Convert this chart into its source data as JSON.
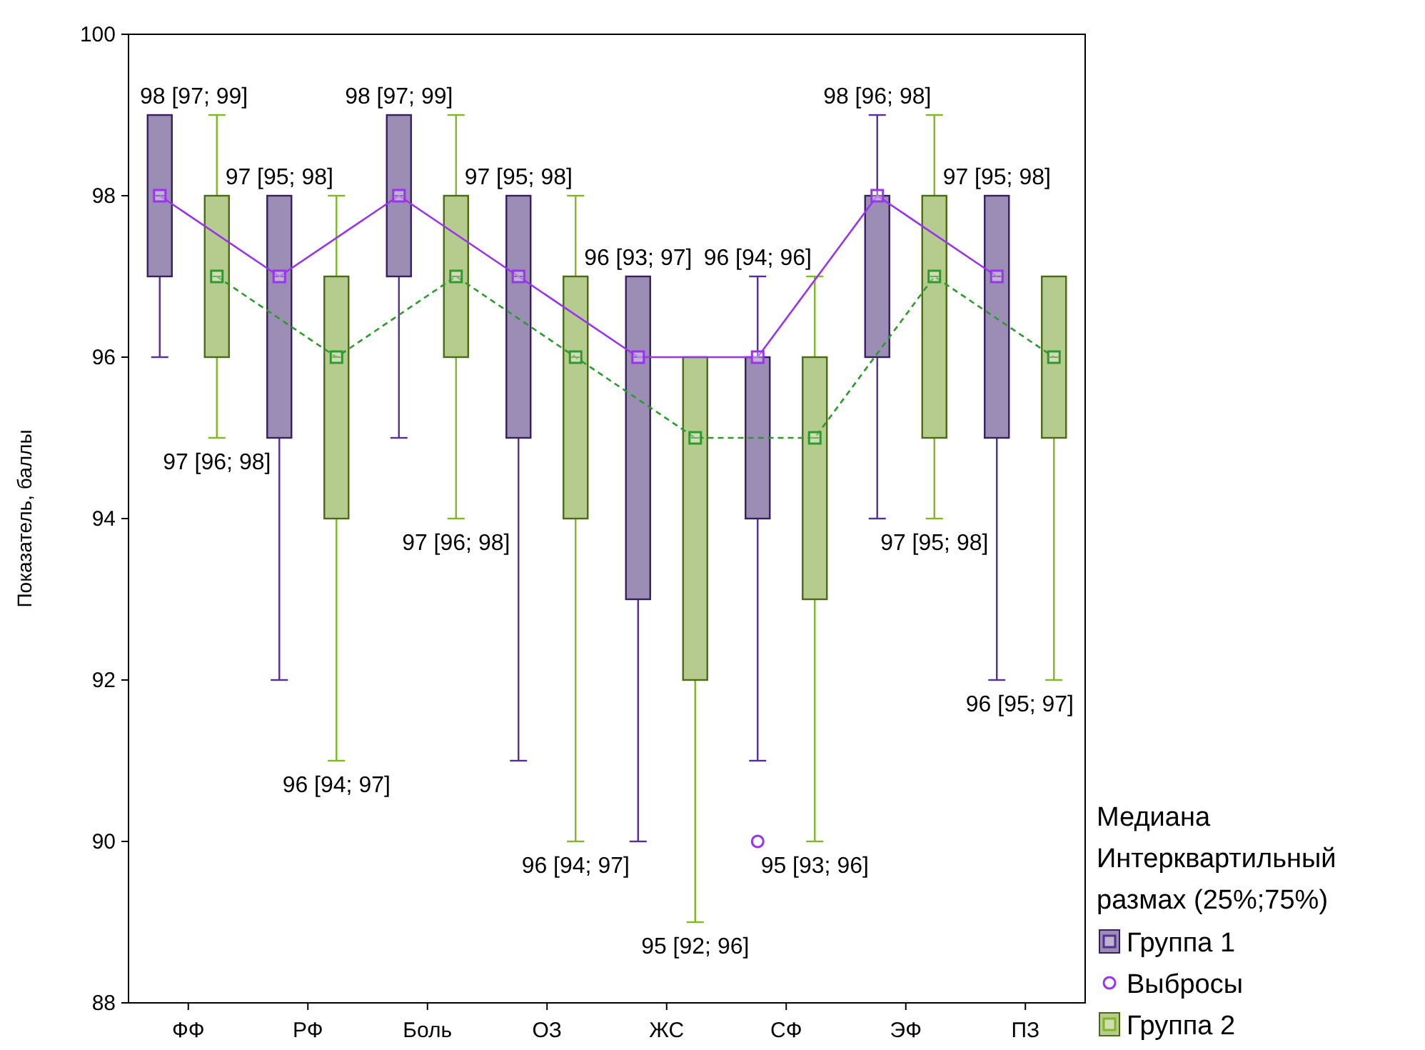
{
  "chart_data": {
    "type": "box",
    "ylabel": "Показатель, баллы",
    "categories": [
      "ФФ",
      "РФ",
      "Боль",
      "ОЗ",
      "ЖС",
      "СФ",
      "ЭФ",
      "ПЗ"
    ],
    "ylim": [
      88,
      100
    ],
    "yticks": [
      88,
      90,
      92,
      94,
      96,
      98,
      100
    ],
    "grid": false,
    "legend": "right",
    "legend_title": "Медиана Интерквартильный размах (25%;75%)",
    "marker": "square",
    "series": [
      {
        "name": "Группа 1",
        "color": "#9c8db5",
        "boxes": [
          {
            "low": 96,
            "q1": 97,
            "median": 98,
            "q3": 99,
            "high": 99
          },
          {
            "low": 92,
            "q1": 95,
            "median": 97,
            "q3": 98,
            "high": 98
          },
          {
            "low": 95,
            "q1": 97,
            "median": 98,
            "q3": 99,
            "high": 99
          },
          {
            "low": 91,
            "q1": 95,
            "median": 97,
            "q3": 98,
            "high": 98
          },
          {
            "low": 90,
            "q1": 93,
            "median": 96,
            "q3": 97,
            "high": 97
          },
          {
            "low": 91,
            "q1": 94,
            "median": 96,
            "q3": 96,
            "high": 97
          },
          {
            "low": 94,
            "q1": 96,
            "median": 98,
            "q3": 98,
            "high": 99
          },
          {
            "low": 92,
            "q1": 95,
            "median": 97,
            "q3": 98,
            "high": 98
          }
        ],
        "value_labels": [
          "98 [97; 99]",
          "97 [95; 98]",
          "98 [97; 99]",
          "97 [95; 98]",
          "96 [93; 97]",
          "96 [94; 96]",
          "98 [96; 98]",
          "97 [95; 98]"
        ]
      },
      {
        "name": "Выбросы",
        "type": "scatter",
        "color": "#9933ee",
        "marker": "circle",
        "x": [
          "СФ"
        ],
        "values": [
          90
        ]
      },
      {
        "type": "line",
        "color": "#9933ee",
        "line_style": "solid",
        "values": [
          98,
          97,
          98,
          97,
          96,
          96,
          98,
          97
        ]
      },
      {
        "type": "line",
        "color": "#2e9a2e",
        "line_style": "dashed",
        "values": [
          97,
          96,
          97,
          96,
          95,
          95,
          97,
          96
        ]
      },
      {
        "name": "Группа 2",
        "color": "#b5cc8e",
        "boxes": [
          {
            "low": 95,
            "q1": 96,
            "median": 97,
            "q3": 98,
            "high": 99
          },
          {
            "low": 91,
            "q1": 94,
            "median": 96,
            "q3": 97,
            "high": 98
          },
          {
            "low": 94,
            "q1": 96,
            "median": 97,
            "q3": 98,
            "high": 99
          },
          {
            "low": 90,
            "q1": 94,
            "median": 96,
            "q3": 97,
            "high": 98
          },
          {
            "low": 89,
            "q1": 92,
            "median": 95,
            "q3": 96,
            "high": 96
          },
          {
            "low": 90,
            "q1": 93,
            "median": 95,
            "q3": 96,
            "high": 97
          },
          {
            "low": 94,
            "q1": 95,
            "median": 97,
            "q3": 98,
            "high": 99
          },
          {
            "low": 92,
            "q1": 95,
            "median": 96,
            "q3": 97,
            "high": 97
          }
        ],
        "value_labels": [
          "97 [96; 98]",
          "96 [94; 97]",
          "97 [96; 98]",
          "96 [94; 97]",
          "95 [92; 96]",
          "95 [93; 96]",
          "97 [95; 98]",
          "96 [95; 97]"
        ]
      }
    ]
  }
}
